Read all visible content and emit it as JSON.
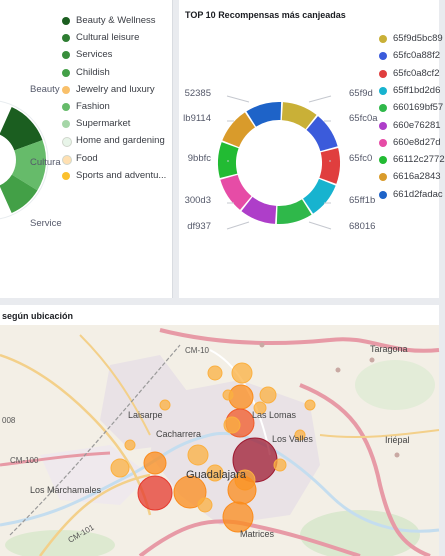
{
  "left_panel": {
    "legend": [
      {
        "label": "Beauty & Wellness",
        "color": "#1b5e20"
      },
      {
        "label": "Cultural leisure",
        "color": "#2e7d32"
      },
      {
        "label": "Services",
        "color": "#388e3c"
      },
      {
        "label": "Childish",
        "color": "#43a047"
      },
      {
        "label": "Jewelry and luxury",
        "color": "#f9c06a"
      },
      {
        "label": "Fashion",
        "color": "#66bb6a"
      },
      {
        "label": "Supermarket",
        "color": "#a5d6a7"
      },
      {
        "label": "Home and gardening",
        "color": "#e8f5e9"
      },
      {
        "label": "Food",
        "color": "#ffe0b2"
      },
      {
        "label": "Sports and adventu...",
        "color": "#fbc02d"
      }
    ],
    "slice_labels": [
      "Beauty",
      "Cultura",
      "Service"
    ]
  },
  "right_panel": {
    "title": "TOP 10 Recompensas más canjeadas",
    "left_labels": [
      "52385",
      "lb9114",
      "9bbfc",
      "300d3",
      "df937"
    ],
    "right_labels": [
      "65f9d",
      "65fc0a",
      "65fc0",
      "65ff1b",
      "68016"
    ],
    "legend": [
      {
        "label": "65f9d5bc89",
        "color": "#c9b037"
      },
      {
        "label": "65fc0a88f2",
        "color": "#3b5bdb"
      },
      {
        "label": "65fc0a8cf2",
        "color": "#e03e3e"
      },
      {
        "label": "65ff1bd2d6",
        "color": "#17b3cf"
      },
      {
        "label": "660169bf57",
        "color": "#2fb84a"
      },
      {
        "label": "660e76281",
        "color": "#ae3ec9"
      },
      {
        "label": "660e8d27d",
        "color": "#e64ca6"
      },
      {
        "label": "66112c2772",
        "color": "#22bb33"
      },
      {
        "label": "6616a2843",
        "color": "#d99b2b"
      },
      {
        "label": "661d2fadac",
        "color": "#1e63c8"
      }
    ]
  },
  "chart_data": {
    "type": "pie",
    "title": "TOP 10 Recompensas más canjeadas",
    "categories": [
      "65f9d5bc89",
      "65fc0a88f2",
      "65fc0a8cf2",
      "65ff1bd2d6",
      "680162",
      "660e76281",
      "660e8d27d",
      "9bbfc",
      "lb9114",
      "52385"
    ],
    "values": [
      10,
      10,
      10,
      10,
      10,
      10,
      10,
      10,
      10,
      10
    ],
    "colors": [
      "#c9b037",
      "#3b5bdb",
      "#e03e3e",
      "#17b3cf",
      "#2fb84a",
      "#ae3ec9",
      "#e64ca6",
      "#22bb33",
      "#d99b2b",
      "#1e63c8"
    ]
  },
  "map_panel": {
    "title": "según ubicación",
    "labels": {
      "cm10": "CM-10",
      "taragona": "Taragona",
      "iriepal": "Iriépal",
      "cm100": "CM-100",
      "marchamalo": "Los Marchamales",
      "guadalajara": "Guadalajara",
      "cacharrera": "Cacharrera",
      "lainsarpe": "Laisarpe",
      "lasLomas": "Las Lomas",
      "losValles": "Los Valles",
      "matrices": "Matrices",
      "cm101": "CM-101",
      "r008": "008"
    }
  }
}
